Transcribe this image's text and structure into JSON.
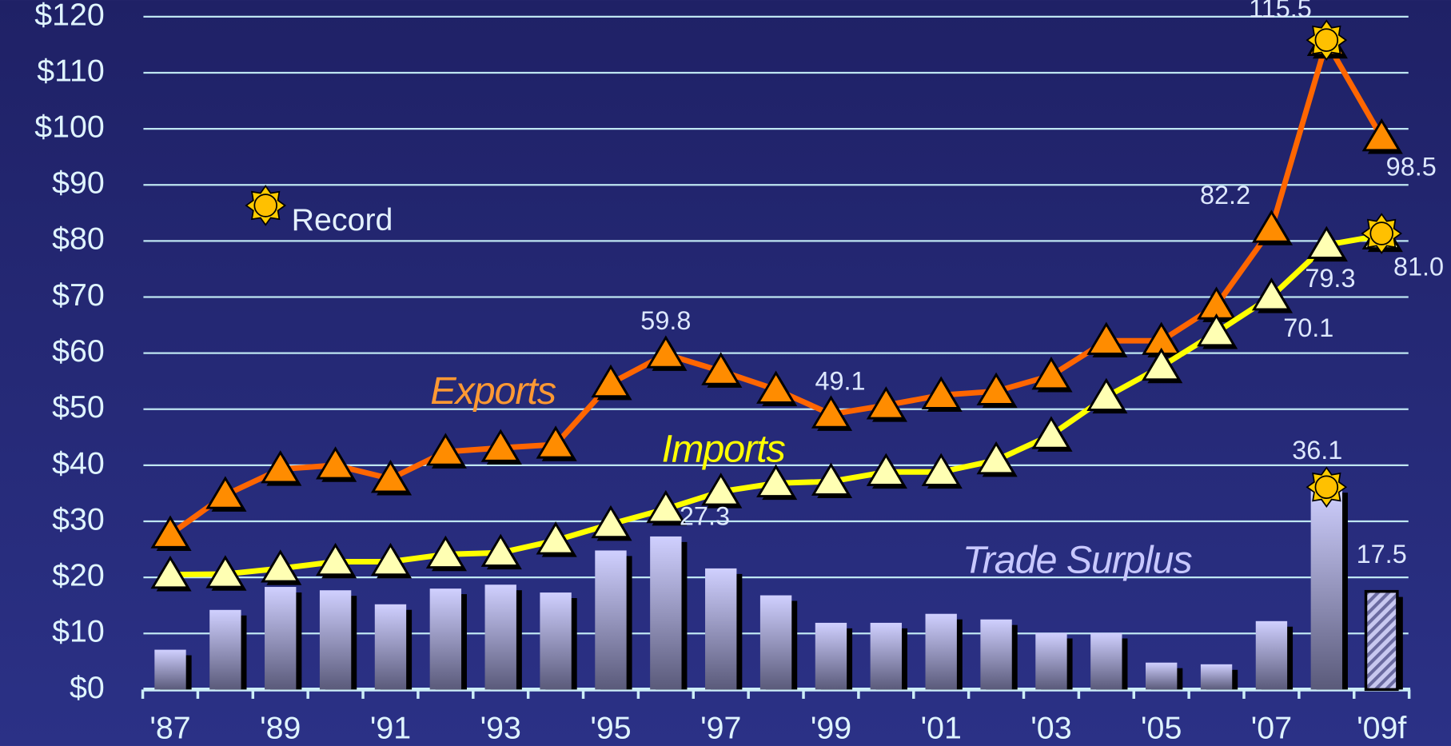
{
  "chart_data": {
    "type": "combo",
    "categories": [
      "'87",
      null,
      "'89",
      null,
      "'91",
      null,
      "'93",
      null,
      "'95",
      null,
      "'97",
      null,
      "'99",
      null,
      "'01",
      null,
      "'03",
      null,
      "'05",
      null,
      "'07",
      null,
      "'09f"
    ],
    "series": [
      {
        "name": "Exports",
        "type": "line",
        "color": "#ff6600",
        "marker_color": "#ff8c00",
        "values": [
          27.7,
          34.7,
          39.3,
          40.0,
          37.6,
          42.4,
          43.1,
          43.7,
          54.6,
          59.8,
          56.8,
          53.5,
          49.1,
          50.7,
          52.5,
          53.2,
          56.0,
          62.2,
          62.2,
          68.5,
          82.2,
          115.5,
          98.5
        ],
        "value_labels": [
          null,
          null,
          null,
          null,
          null,
          null,
          null,
          null,
          null,
          "59.8",
          null,
          null,
          "49.1",
          null,
          null,
          null,
          null,
          null,
          null,
          null,
          "82.2",
          "115.5",
          "98.5"
        ]
      },
      {
        "name": "Imports",
        "type": "line",
        "color": "#ffff00",
        "marker_color": "#ffffb3",
        "values": [
          20.5,
          20.6,
          21.6,
          22.8,
          22.8,
          24.1,
          24.4,
          26.6,
          29.5,
          32.2,
          35.3,
          36.8,
          37.1,
          38.8,
          38.8,
          40.9,
          45.4,
          52.2,
          57.6,
          63.7,
          70.1,
          79.3,
          81.0
        ],
        "value_labels": [
          null,
          null,
          null,
          null,
          null,
          null,
          null,
          null,
          null,
          null,
          null,
          null,
          null,
          null,
          null,
          null,
          null,
          null,
          null,
          null,
          "70.1",
          "79.3",
          "81.0"
        ]
      },
      {
        "name": "Trade Surplus",
        "type": "bar",
        "color": "#c8c8ff",
        "values": [
          7.1,
          14.2,
          18.3,
          17.7,
          15.2,
          18.0,
          18.7,
          17.3,
          24.8,
          27.3,
          21.6,
          16.8,
          11.9,
          11.9,
          13.5,
          12.5,
          10.1,
          10.1,
          4.8,
          4.5,
          12.2,
          36.1,
          17.5
        ],
        "value_labels": [
          null,
          null,
          null,
          null,
          null,
          null,
          null,
          null,
          null,
          "27.3",
          null,
          null,
          null,
          null,
          null,
          null,
          null,
          null,
          null,
          null,
          null,
          "36.1",
          "17.5"
        ]
      }
    ],
    "record_label": "Record",
    "records": [
      {
        "series": 0,
        "index": 21
      },
      {
        "series": 1,
        "index": 22
      },
      {
        "series": 2,
        "index": 21
      }
    ],
    "forecast_index": 22,
    "ylim": [
      0,
      120
    ],
    "yticks": [
      {
        "value": 0,
        "label": "$0"
      },
      {
        "value": 10,
        "label": "$10"
      },
      {
        "value": 20,
        "label": "$20"
      },
      {
        "value": 30,
        "label": "$30"
      },
      {
        "value": 40,
        "label": "$40"
      },
      {
        "value": 50,
        "label": "$50"
      },
      {
        "value": 60,
        "label": "$60"
      },
      {
        "value": 70,
        "label": "$70"
      },
      {
        "value": 80,
        "label": "$80"
      },
      {
        "value": 90,
        "label": "$90"
      },
      {
        "value": 100,
        "label": "$100"
      },
      {
        "value": 110,
        "label": "$110"
      },
      {
        "value": 120,
        "label": "$120"
      }
    ],
    "grid": true
  }
}
